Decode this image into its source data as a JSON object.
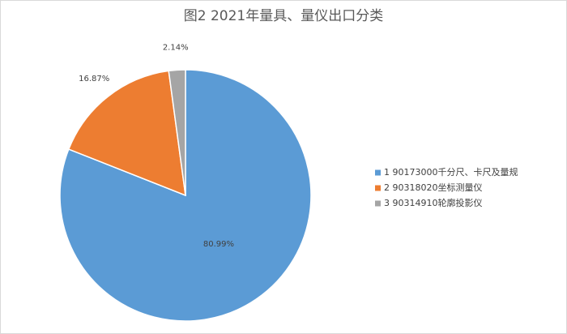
{
  "chart_data": {
    "type": "pie",
    "title": "图2 2021年量具、量仪出口分类",
    "categories": [
      "1 90173000千分尺、卡尺及量规",
      "2 90318020坐标测量仪",
      "3 90314910轮廓投影仪"
    ],
    "values": [
      80.99,
      16.87,
      2.14
    ],
    "value_labels": [
      "80.99%",
      "16.87%",
      "2.14%"
    ],
    "colors": [
      "#5b9bd5",
      "#ed7d31",
      "#a5a5a5"
    ],
    "legend": "right"
  }
}
